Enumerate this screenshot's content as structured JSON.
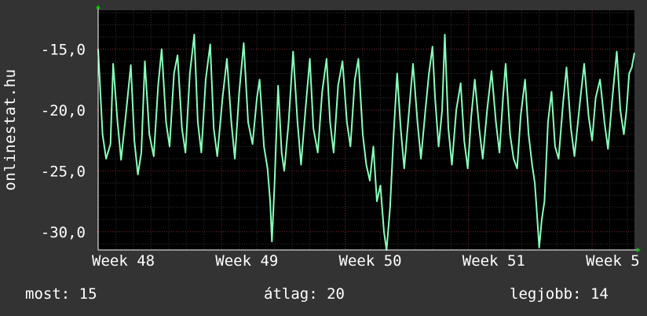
{
  "colors": {
    "background": "#333333",
    "plot_background": "#000000",
    "grid_minor": "#333333",
    "grid_major": "#7a2a2a",
    "line": "#88ffbb",
    "axis_arrow": "#00cc00",
    "text": "#ffffff"
  },
  "chart_data": {
    "type": "line",
    "title": "",
    "ylabel": "onlinestat.hu",
    "xlabel": "",
    "ylim": [
      -31.5,
      -11.8
    ],
    "y_ticks": [
      -15,
      -20,
      -25,
      -30
    ],
    "y_tick_labels": [
      "-15,0",
      "-20,0",
      "-25,0",
      "-30,0"
    ],
    "x_ticks": [
      0,
      7,
      14,
      21,
      28
    ],
    "x_tick_labels": [
      "Week 48",
      "Week 49",
      "Week 50",
      "Week 51",
      "Week 5"
    ],
    "xlim": [
      0,
      30.4
    ],
    "grid": true,
    "series": [
      {
        "values": [
          [
            0.0,
            -15.0
          ],
          [
            0.25,
            -22.0
          ],
          [
            0.45,
            -24.0
          ],
          [
            0.7,
            -22.8
          ],
          [
            0.85,
            -16.2
          ],
          [
            1.1,
            -21.0
          ],
          [
            1.3,
            -24.1
          ],
          [
            1.6,
            -20.0
          ],
          [
            1.85,
            -16.3
          ],
          [
            2.05,
            -22.5
          ],
          [
            2.25,
            -25.3
          ],
          [
            2.45,
            -23.5
          ],
          [
            2.65,
            -16.0
          ],
          [
            2.9,
            -22.0
          ],
          [
            3.15,
            -23.8
          ],
          [
            3.4,
            -18.0
          ],
          [
            3.6,
            -15.0
          ],
          [
            3.85,
            -21.0
          ],
          [
            4.05,
            -23.0
          ],
          [
            4.3,
            -17.0
          ],
          [
            4.5,
            -15.5
          ],
          [
            4.75,
            -21.5
          ],
          [
            4.95,
            -23.5
          ],
          [
            5.2,
            -17.0
          ],
          [
            5.45,
            -13.8
          ],
          [
            5.65,
            -21.0
          ],
          [
            5.85,
            -23.5
          ],
          [
            6.1,
            -17.5
          ],
          [
            6.35,
            -14.6
          ],
          [
            6.55,
            -21.5
          ],
          [
            6.75,
            -23.8
          ],
          [
            7.05,
            -19.0
          ],
          [
            7.3,
            -15.8
          ],
          [
            7.55,
            -21.0
          ],
          [
            7.75,
            -24.0
          ],
          [
            8.0,
            -18.5
          ],
          [
            8.25,
            -14.5
          ],
          [
            8.5,
            -21.0
          ],
          [
            8.75,
            -22.8
          ],
          [
            9.0,
            -19.0
          ],
          [
            9.15,
            -17.5
          ],
          [
            9.4,
            -23.0
          ],
          [
            9.6,
            -24.8
          ],
          [
            9.75,
            -27.5
          ],
          [
            9.85,
            -30.8
          ],
          [
            10.0,
            -26.0
          ],
          [
            10.2,
            -18.0
          ],
          [
            10.4,
            -23.5
          ],
          [
            10.55,
            -25.0
          ],
          [
            10.8,
            -21.0
          ],
          [
            11.05,
            -15.2
          ],
          [
            11.3,
            -21.0
          ],
          [
            11.5,
            -24.5
          ],
          [
            11.75,
            -20.0
          ],
          [
            12.0,
            -15.8
          ],
          [
            12.2,
            -21.5
          ],
          [
            12.45,
            -23.5
          ],
          [
            12.7,
            -18.5
          ],
          [
            12.95,
            -15.8
          ],
          [
            13.15,
            -21.0
          ],
          [
            13.35,
            -23.5
          ],
          [
            13.6,
            -18.0
          ],
          [
            13.85,
            -16.0
          ],
          [
            14.1,
            -21.0
          ],
          [
            14.3,
            -23.0
          ],
          [
            14.55,
            -17.5
          ],
          [
            14.75,
            -15.8
          ],
          [
            15.0,
            -22.0
          ],
          [
            15.2,
            -24.5
          ],
          [
            15.4,
            -25.8
          ],
          [
            15.6,
            -23.0
          ],
          [
            15.8,
            -27.5
          ],
          [
            16.0,
            -26.2
          ],
          [
            16.2,
            -30.0
          ],
          [
            16.35,
            -31.5
          ],
          [
            16.55,
            -28.0
          ],
          [
            16.75,
            -22.0
          ],
          [
            16.95,
            -17.0
          ],
          [
            17.15,
            -21.5
          ],
          [
            17.35,
            -24.8
          ],
          [
            17.6,
            -20.5
          ],
          [
            17.85,
            -16.2
          ],
          [
            18.1,
            -21.0
          ],
          [
            18.3,
            -24.0
          ],
          [
            18.55,
            -20.0
          ],
          [
            18.75,
            -17.0
          ],
          [
            18.95,
            -14.8
          ],
          [
            19.1,
            -19.0
          ],
          [
            19.3,
            -23.0
          ],
          [
            19.5,
            -20.0
          ],
          [
            19.65,
            -13.8
          ],
          [
            19.85,
            -21.5
          ],
          [
            20.05,
            -24.5
          ],
          [
            20.3,
            -20.0
          ],
          [
            20.55,
            -17.8
          ],
          [
            20.75,
            -22.5
          ],
          [
            20.95,
            -24.8
          ],
          [
            21.15,
            -20.5
          ],
          [
            21.35,
            -17.5
          ],
          [
            21.6,
            -21.5
          ],
          [
            21.8,
            -24.0
          ],
          [
            22.05,
            -20.0
          ],
          [
            22.3,
            -16.8
          ],
          [
            22.55,
            -21.0
          ],
          [
            22.75,
            -23.5
          ],
          [
            22.95,
            -19.0
          ],
          [
            23.1,
            -16.2
          ],
          [
            23.35,
            -22.0
          ],
          [
            23.55,
            -24.0
          ],
          [
            23.75,
            -24.8
          ],
          [
            23.95,
            -20.5
          ],
          [
            24.2,
            -17.5
          ],
          [
            24.4,
            -22.0
          ],
          [
            24.6,
            -24.5
          ],
          [
            24.75,
            -26.0
          ],
          [
            24.85,
            -28.0
          ],
          [
            25.0,
            -31.3
          ],
          [
            25.15,
            -29.0
          ],
          [
            25.3,
            -27.5
          ],
          [
            25.5,
            -21.0
          ],
          [
            25.7,
            -18.5
          ],
          [
            25.9,
            -23.0
          ],
          [
            26.1,
            -24.0
          ],
          [
            26.35,
            -19.5
          ],
          [
            26.55,
            -16.5
          ],
          [
            26.8,
            -21.5
          ],
          [
            27.0,
            -23.8
          ],
          [
            27.3,
            -19.5
          ],
          [
            27.55,
            -16.2
          ],
          [
            27.8,
            -20.5
          ],
          [
            28.0,
            -22.5
          ],
          [
            28.2,
            -19.0
          ],
          [
            28.45,
            -17.5
          ],
          [
            28.7,
            -21.0
          ],
          [
            28.9,
            -23.2
          ],
          [
            29.15,
            -19.0
          ],
          [
            29.4,
            -15.2
          ],
          [
            29.6,
            -20.0
          ],
          [
            29.8,
            -22.0
          ],
          [
            29.95,
            -20.0
          ],
          [
            30.1,
            -17.0
          ],
          [
            30.25,
            -16.5
          ],
          [
            30.4,
            -15.3
          ]
        ]
      }
    ]
  },
  "footer": {
    "now": "most: 15",
    "average": "átlag: 20",
    "best": "legjobb: 14"
  }
}
